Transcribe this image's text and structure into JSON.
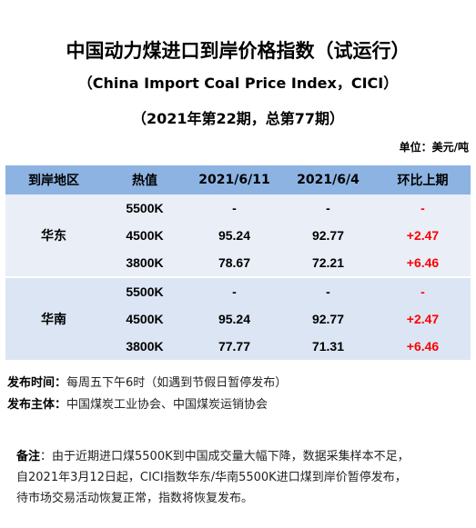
{
  "header": {
    "title": "中国动力煤进口到岸价格指数（试运行）",
    "subtitle": "（China Import Coal Price Index，CICI）",
    "issue": "（2021年第22期，总第77期）",
    "unit": "单位：美元/吨"
  },
  "table": {
    "columns": [
      "到岸地区",
      "热值",
      "2021/6/11",
      "2021/6/4",
      "环比上期"
    ],
    "groups": [
      {
        "region": "华东",
        "rows": [
          {
            "calorific": "5500K",
            "current": "-",
            "previous": "-",
            "change": "-"
          },
          {
            "calorific": "4500K",
            "current": "95.24",
            "previous": "92.77",
            "change": "+2.47"
          },
          {
            "calorific": "3800K",
            "current": "78.67",
            "previous": "72.21",
            "change": "+6.46"
          }
        ]
      },
      {
        "region": "华南",
        "rows": [
          {
            "calorific": "5500K",
            "current": "-",
            "previous": "-",
            "change": "-"
          },
          {
            "calorific": "4500K",
            "current": "95.24",
            "previous": "92.77",
            "change": "+2.47"
          },
          {
            "calorific": "3800K",
            "current": "77.77",
            "previous": "71.31",
            "change": "+6.46"
          }
        ]
      }
    ]
  },
  "meta": {
    "release_time_label": "发布时间：",
    "release_time_value": "每周五下午6时（如遇到节假日暂停发布）",
    "publisher_label": "发布主体：",
    "publisher_value": "中国煤炭工业协会、中国煤炭运销协会"
  },
  "note": {
    "label": "备注",
    "line1": "：由于近期进口煤5500K到中国成交量大幅下降，数据采集样本不足，",
    "line2": "自2021年3月12日起，CICI指数华东/华南5500K进口煤到岸价暂停发布，",
    "line3": "待市场交易活动恢复正常，指数将恢复发布。"
  }
}
